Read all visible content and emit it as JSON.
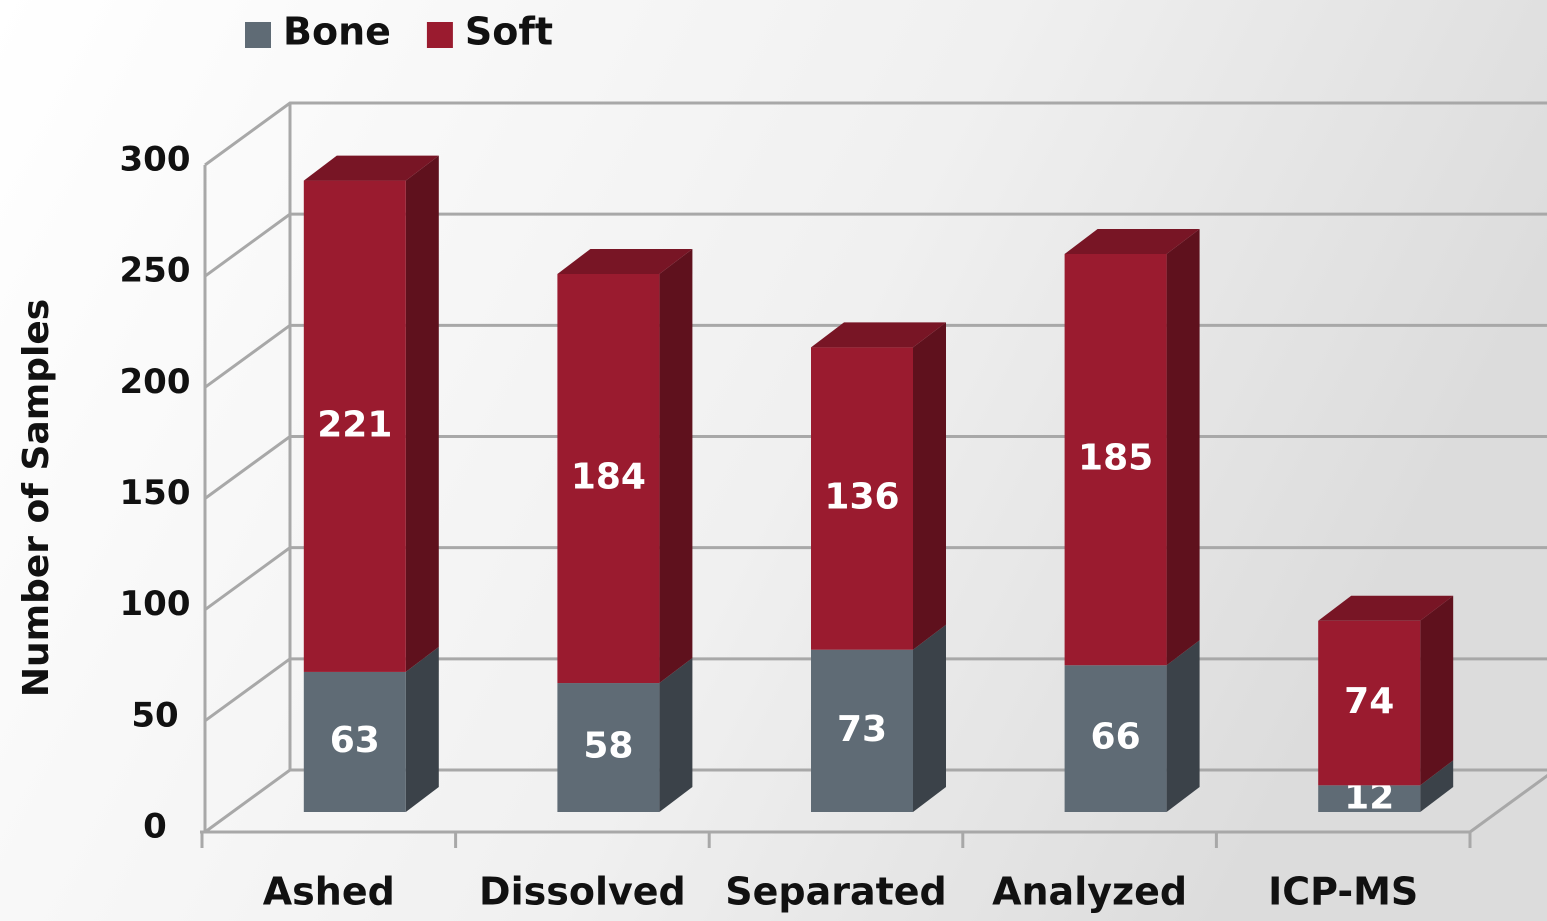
{
  "chart_data": {
    "type": "bar",
    "stacked": true,
    "ylabel": "Number of Samples",
    "categories": [
      "Ashed",
      "Dissolved",
      "Separated",
      "Analyzed",
      "ICP-MS"
    ],
    "series": [
      {
        "name": "Bone",
        "color": "#5f6b75",
        "values": [
          63,
          58,
          73,
          66,
          12
        ]
      },
      {
        "name": "Soft",
        "color": "#9a1b2f",
        "values": [
          221,
          184,
          136,
          185,
          74
        ]
      }
    ],
    "ylim": [
      0,
      300
    ],
    "yticks": [
      0,
      50,
      100,
      150,
      200,
      250,
      300
    ],
    "grid": true,
    "legend": "top-left"
  }
}
